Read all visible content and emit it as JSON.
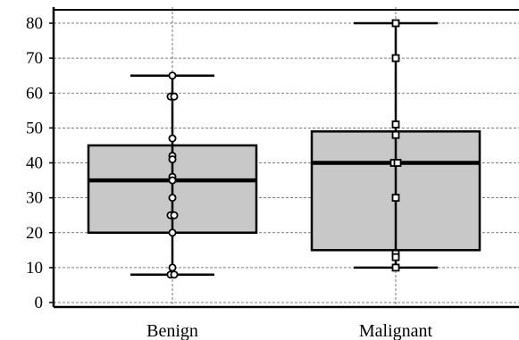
{
  "chart_data": {
    "type": "boxplot",
    "title": "",
    "xlabel": "",
    "ylabel": "",
    "ylim": [
      0,
      82
    ],
    "yticks": [
      0,
      10,
      20,
      30,
      40,
      50,
      60,
      70,
      80
    ],
    "grid": true,
    "categories": [
      "Benign",
      "Malignant"
    ],
    "boxes": [
      {
        "category": "Benign",
        "whisker_low": 8,
        "q1": 20,
        "median": 35,
        "q3": 45,
        "whisker_high": 65,
        "marker": "circle",
        "points": [
          65,
          59,
          59,
          47,
          42,
          41,
          36,
          35,
          30,
          25,
          25,
          20,
          10,
          8,
          8
        ]
      },
      {
        "category": "Malignant",
        "whisker_low": 10,
        "q1": 15,
        "median": 40,
        "q3": 49,
        "whisker_high": 80,
        "marker": "square",
        "points": [
          80,
          70,
          51,
          48,
          40,
          40,
          30,
          14,
          13,
          10
        ]
      }
    ]
  },
  "colors": {
    "box_fill": "#c8c8c8",
    "stroke": "#000000",
    "grid": "#555555",
    "background": "#ffffff"
  }
}
